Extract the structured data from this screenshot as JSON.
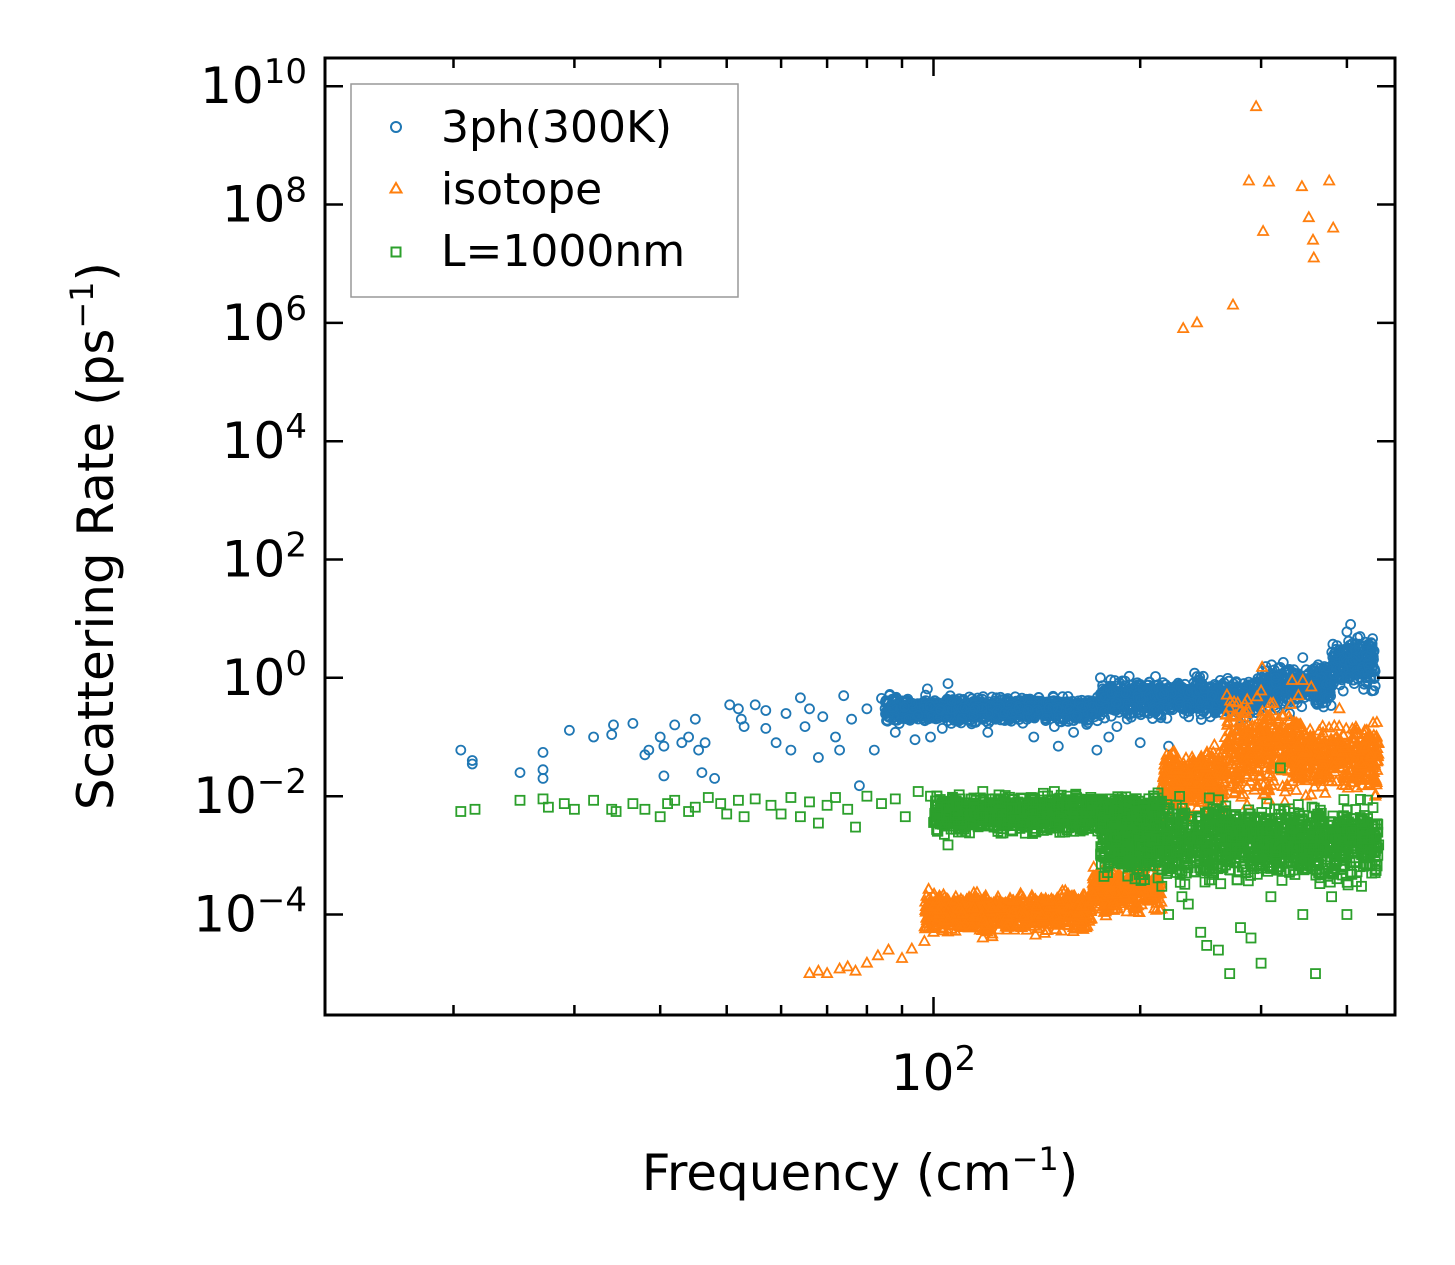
{
  "chart_data": {
    "type": "scatter",
    "title": "",
    "xlabel": "Frequency (cm",
    "xlabel_sup": "−1",
    "xlabel_end": ")",
    "ylabel": "Scattering Rate (ps",
    "ylabel_sup": "−1",
    "ylabel_end": ")",
    "xscale": "log",
    "yscale": "log",
    "xlim": [
      13,
      470
    ],
    "ylim": [
      2e-06,
      30000000000
    ],
    "x_ticks": [
      {
        "value": 100,
        "base": "10",
        "exp": "2"
      }
    ],
    "y_ticks": [
      {
        "value": 10000000000,
        "base": "10",
        "exp": "10"
      },
      {
        "value": 100000000,
        "base": "10",
        "exp": "8"
      },
      {
        "value": 1000000,
        "base": "10",
        "exp": "6"
      },
      {
        "value": 10000,
        "base": "10",
        "exp": "4"
      },
      {
        "value": 100,
        "base": "10",
        "exp": "2"
      },
      {
        "value": 1,
        "base": "10",
        "exp": "0"
      },
      {
        "value": 0.01,
        "base": "10",
        "exp": "−2"
      },
      {
        "value": 0.0001,
        "base": "10",
        "exp": "−4"
      }
    ],
    "legend_position": "top-left",
    "series": [
      {
        "name": "3ph(300K)",
        "marker": "circle",
        "color": "#1f77b4",
        "points": [
          [
            20.5,
            0.06
          ],
          [
            21.3,
            0.04
          ],
          [
            21.3,
            0.035
          ],
          [
            25,
            0.025
          ],
          [
            27,
            0.055
          ],
          [
            27,
            0.028
          ],
          [
            27,
            0.02
          ],
          [
            29.5,
            0.13
          ],
          [
            32,
            0.1
          ],
          [
            34,
            0.11
          ],
          [
            34.2,
            0.16
          ],
          [
            36.5,
            0.17
          ],
          [
            38,
            0.05
          ],
          [
            38.5,
            0.06
          ],
          [
            40,
            0.1
          ],
          [
            40.5,
            0.07
          ],
          [
            40.5,
            0.022
          ],
          [
            42,
            0.16
          ],
          [
            43,
            0.08
          ],
          [
            44,
            0.1
          ],
          [
            45,
            0.2
          ],
          [
            45.5,
            0.06
          ],
          [
            46,
            0.025
          ],
          [
            46.5,
            0.08
          ],
          [
            48,
            0.02
          ],
          [
            50.5,
            0.35
          ],
          [
            52,
            0.3
          ],
          [
            52.5,
            0.2
          ],
          [
            53,
            0.15
          ],
          [
            55,
            0.35
          ],
          [
            57,
            0.28
          ],
          [
            57,
            0.14
          ],
          [
            59,
            0.08
          ],
          [
            61,
            0.25
          ],
          [
            62,
            0.06
          ],
          [
            64,
            0.46
          ],
          [
            65,
            0.15
          ],
          [
            66,
            0.3
          ],
          [
            68,
            0.045
          ],
          [
            69,
            0.22
          ],
          [
            72,
            0.1
          ],
          [
            73,
            0.06
          ],
          [
            74,
            0.5
          ],
          [
            76,
            0.2
          ],
          [
            78,
            0.015
          ],
          [
            80,
            0.3
          ],
          [
            82,
            0.06
          ],
          [
            84,
            0.45
          ],
          [
            88,
            0.12
          ],
          [
            92,
            0.2
          ],
          [
            94,
            0.09
          ],
          [
            98,
            0.65
          ],
          [
            99,
            0.1
          ],
          [
            103,
            0.14
          ],
          [
            105,
            0.8
          ],
          [
            110,
            0.2
          ],
          [
            115,
            0.3
          ],
          [
            120,
            0.12
          ],
          [
            130,
            0.25
          ],
          [
            140,
            0.1
          ],
          [
            150,
            0.15
          ],
          [
            152,
            0.07
          ],
          [
            160,
            0.12
          ],
          [
            170,
            0.25
          ],
          [
            173,
            0.06
          ],
          [
            175,
            1.0
          ],
          [
            180,
            0.1
          ],
          [
            185,
            0.15
          ],
          [
            200,
            0.08
          ],
          [
            220,
            0.07
          ],
          [
            240,
            1.2
          ],
          [
            250,
            0.25
          ],
          [
            270,
            0.4
          ],
          [
            280,
            0.15
          ],
          [
            300,
            1.0
          ],
          [
            315,
            1.0
          ],
          [
            320,
            1.5
          ],
          [
            330,
            0.25
          ],
          [
            345,
            2.2
          ],
          [
            360,
            0.8
          ],
          [
            375,
            1.5
          ],
          [
            390,
            3
          ],
          [
            395,
            0.6
          ],
          [
            400,
            6
          ],
          [
            405,
            8
          ],
          [
            410,
            0.8
          ],
          [
            418,
            5
          ],
          [
            425,
            4
          ],
          [
            435,
            3
          ]
        ],
        "bands": [
          {
            "x_from": 85,
            "x_to": 175,
            "y_lo": 0.15,
            "y_hi": 0.55
          },
          {
            "x_from": 175,
            "x_to": 300,
            "y_lo": 0.18,
            "y_hi": 1.2
          },
          {
            "x_from": 300,
            "x_to": 380,
            "y_lo": 0.25,
            "y_hi": 2.2
          },
          {
            "x_from": 380,
            "x_to": 440,
            "y_lo": 0.5,
            "y_hi": 6
          }
        ]
      },
      {
        "name": "isotope",
        "marker": "triangle",
        "color": "#ff7f0e",
        "points": [
          [
            231,
            800000
          ],
          [
            242,
            1000000
          ],
          [
            273,
            2000000
          ],
          [
            288,
            250000000
          ],
          [
            295,
            4500000000
          ],
          [
            302,
            35000000
          ],
          [
            308,
            240000000
          ],
          [
            344,
            200000000
          ],
          [
            352,
            60000000
          ],
          [
            357,
            25000000
          ],
          [
            358,
            12500000
          ],
          [
            377,
            250000000
          ],
          [
            382,
            40000000
          ],
          [
            355,
            0.7
          ],
          [
            345,
            0.9
          ],
          [
            66,
            1e-05
          ],
          [
            68,
            1.1e-05
          ],
          [
            70,
            1e-05
          ],
          [
            73,
            1.2e-05
          ],
          [
            75,
            1.3e-05
          ],
          [
            77,
            1.1e-05
          ],
          [
            80,
            1.5e-05
          ],
          [
            83,
            2e-05
          ],
          [
            86,
            2.5e-05
          ],
          [
            90,
            1.8e-05
          ],
          [
            93,
            2.6e-05
          ],
          [
            97,
            3.5e-05
          ],
          [
            100,
            5e-05
          ],
          [
            105,
            8e-05
          ],
          [
            110,
            6e-05
          ],
          [
            118,
            4e-05
          ],
          [
            125,
            0.00013
          ],
          [
            232,
            0.028
          ],
          [
            238,
            0.045
          ],
          [
            250,
            0.05
          ],
          [
            270,
            0.08
          ],
          [
            300,
            0.6
          ],
          [
            301,
            1.5
          ],
          [
            333,
            0.9
          ],
          [
            340,
            0.5
          ],
          [
            355,
            0.08
          ],
          [
            390,
            0.3
          ],
          [
            420,
            0.035
          ],
          [
            430,
            0.015
          ],
          [
            440,
            0.01
          ]
        ],
        "bands": [
          {
            "x_from": 97,
            "x_to": 170,
            "y_lo": 4e-05,
            "y_hi": 0.0003
          },
          {
            "x_from": 170,
            "x_to": 215,
            "y_lo": 8e-05,
            "y_hi": 0.0008
          },
          {
            "x_from": 215,
            "x_to": 265,
            "y_lo": 0.003,
            "y_hi": 0.1
          },
          {
            "x_from": 265,
            "x_to": 340,
            "y_lo": 0.005,
            "y_hi": 0.8
          },
          {
            "x_from": 340,
            "x_to": 445,
            "y_lo": 0.008,
            "y_hi": 0.25
          }
        ]
      },
      {
        "name": "L=1000nm",
        "marker": "square",
        "color": "#2ca02c",
        "points": [
          [
            20.5,
            0.0055
          ],
          [
            21.5,
            0.006
          ],
          [
            25,
            0.0085
          ],
          [
            27,
            0.009
          ],
          [
            27.5,
            0.0065
          ],
          [
            29,
            0.0075
          ],
          [
            30,
            0.006
          ],
          [
            32,
            0.0085
          ],
          [
            34,
            0.006
          ],
          [
            34.5,
            0.0055
          ],
          [
            36.5,
            0.0075
          ],
          [
            38,
            0.006
          ],
          [
            40,
            0.0045
          ],
          [
            41,
            0.0075
          ],
          [
            42,
            0.0085
          ],
          [
            44,
            0.0055
          ],
          [
            45,
            0.0065
          ],
          [
            47,
            0.0095
          ],
          [
            49,
            0.0075
          ],
          [
            50,
            0.005
          ],
          [
            52,
            0.0085
          ],
          [
            53,
            0.0045
          ],
          [
            55,
            0.009
          ],
          [
            58,
            0.007
          ],
          [
            60,
            0.005
          ],
          [
            62,
            0.0095
          ],
          [
            64,
            0.0045
          ],
          [
            66,
            0.008
          ],
          [
            68,
            0.0035
          ],
          [
            70,
            0.007
          ],
          [
            72,
            0.0095
          ],
          [
            75,
            0.006
          ],
          [
            77,
            0.003
          ],
          [
            80,
            0.01
          ],
          [
            84,
            0.0075
          ],
          [
            88,
            0.009
          ],
          [
            91,
            0.0045
          ],
          [
            95,
            0.012
          ],
          [
            99,
            0.01
          ],
          [
            103,
            0.0035
          ],
          [
            105,
            0.0015
          ],
          [
            110,
            0.0025
          ],
          [
            118,
            0.012
          ],
          [
            130,
            0.006
          ],
          [
            140,
            0.0035
          ],
          [
            150,
            0.012
          ],
          [
            160,
            0.008
          ],
          [
            190,
            0.002
          ],
          [
            200,
            0.0015
          ],
          [
            215,
            0.0003
          ],
          [
            220,
            0.0001
          ],
          [
            230,
            0.0002
          ],
          [
            235,
            0.00015
          ],
          [
            245,
            5e-05
          ],
          [
            250,
            3e-05
          ],
          [
            260,
            2.5e-05
          ],
          [
            270,
            1e-05
          ],
          [
            280,
            6e-05
          ],
          [
            290,
            4e-05
          ],
          [
            300,
            1.5e-05
          ],
          [
            310,
            0.0002
          ],
          [
            320,
            0.03
          ],
          [
            345,
            0.0001
          ],
          [
            360,
            1e-05
          ],
          [
            380,
            0.0002
          ],
          [
            400,
            0.0001
          ],
          [
            420,
            0.0003
          ],
          [
            440,
            0.0008
          ],
          [
            445,
            0.0015
          ]
        ],
        "bands": [
          {
            "x_from": 100,
            "x_to": 215,
            "y_lo": 0.002,
            "y_hi": 0.013
          },
          {
            "x_from": 175,
            "x_to": 445,
            "y_lo": 0.00025,
            "y_hi": 0.012
          }
        ]
      }
    ]
  }
}
